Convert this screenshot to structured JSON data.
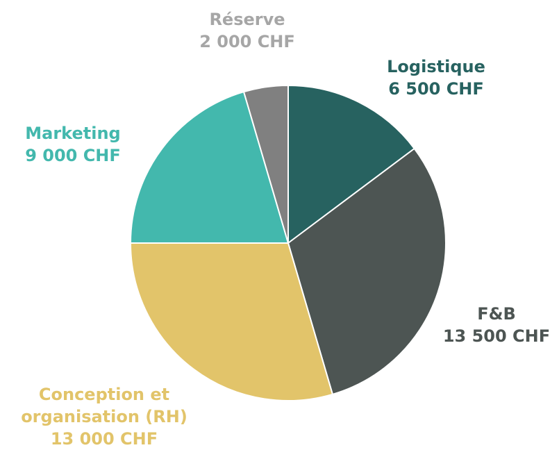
{
  "chart_data": {
    "type": "pie",
    "categories": [
      "Logistique",
      "F&B",
      "Conception et organisation (RH)",
      "Marketing",
      "Réserve"
    ],
    "values": [
      6500,
      13500,
      13000,
      9000,
      2000
    ],
    "value_labels": [
      "6 500 CHF",
      "13 500 CHF",
      "13 000 CHF",
      "9 000 CHF",
      "2 000 CHF"
    ],
    "colors": [
      "#276260",
      "#4d5553",
      "#e2c46a",
      "#43b8ad",
      "#808080"
    ],
    "label_colors": [
      "#276260",
      "#4d5553",
      "#e2c46a",
      "#43b8ad",
      "#a6a6a6"
    ]
  }
}
